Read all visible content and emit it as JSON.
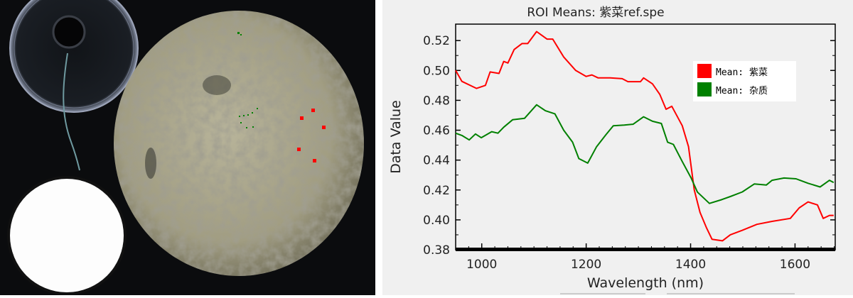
{
  "photo": {
    "roi_colors": {
      "purple_laver": "#ff0000",
      "impurity": "#008000"
    }
  },
  "chart_data": {
    "type": "line",
    "title": "ROI Means: 紫菜ref.spe",
    "xlabel": "Wavelength (nm)",
    "ylabel": "Data Value",
    "xlim": [
      950,
      1677
    ],
    "ylim": [
      0.38,
      0.531
    ],
    "xticks": [
      1000,
      1200,
      1400,
      1600
    ],
    "xtick_labels": [
      "1000",
      "1200",
      "1400",
      "1600"
    ],
    "yticks": [
      0.38,
      0.4,
      0.42,
      0.44,
      0.46,
      0.48,
      0.5,
      0.52
    ],
    "ytick_labels": [
      "0.38",
      "0.40",
      "0.42",
      "0.44",
      "0.46",
      "0.48",
      "0.50",
      "0.52"
    ],
    "grid": false,
    "legend_position": "top-right",
    "series": [
      {
        "name": "Mean: 紫菜",
        "color": "#ff0000",
        "x": [
          950,
          962,
          990,
          1007,
          1016,
          1033,
          1042,
          1050,
          1062,
          1077,
          1088,
          1105,
          1125,
          1136,
          1157,
          1180,
          1200,
          1211,
          1223,
          1246,
          1269,
          1280,
          1304,
          1310,
          1327,
          1341,
          1353,
          1364,
          1384,
          1396,
          1407,
          1418,
          1430,
          1441,
          1461,
          1476,
          1499,
          1527,
          1556,
          1591,
          1608,
          1625,
          1643,
          1654,
          1666,
          1674
        ],
        "y": [
          0.5,
          0.4927,
          0.488,
          0.49,
          0.499,
          0.498,
          0.506,
          0.505,
          0.514,
          0.518,
          0.518,
          0.526,
          0.521,
          0.521,
          0.509,
          0.5,
          0.496,
          0.497,
          0.495,
          0.495,
          0.4945,
          0.4925,
          0.4925,
          0.495,
          0.491,
          0.484,
          0.474,
          0.476,
          0.463,
          0.449,
          0.42,
          0.405,
          0.395,
          0.387,
          0.386,
          0.39,
          0.393,
          0.397,
          0.399,
          0.401,
          0.408,
          0.412,
          0.41,
          0.401,
          0.403,
          0.403
        ]
      },
      {
        "name": "Mean: 杂质",
        "color": "#008000",
        "x": [
          950,
          962,
          976,
          988,
          999,
          1019,
          1031,
          1042,
          1059,
          1082,
          1105,
          1122,
          1140,
          1157,
          1174,
          1186,
          1203,
          1220,
          1238,
          1252,
          1273,
          1290,
          1310,
          1327,
          1344,
          1356,
          1367,
          1384,
          1401,
          1413,
          1436,
          1459,
          1476,
          1499,
          1522,
          1545,
          1556,
          1579,
          1602,
          1625,
          1648,
          1666,
          1674
        ],
        "y": [
          0.458,
          0.4565,
          0.4535,
          0.4575,
          0.455,
          0.459,
          0.458,
          0.462,
          0.467,
          0.468,
          0.477,
          0.473,
          0.471,
          0.46,
          0.452,
          0.441,
          0.438,
          0.449,
          0.457,
          0.463,
          0.4635,
          0.464,
          0.469,
          0.466,
          0.4645,
          0.452,
          0.4505,
          0.439,
          0.428,
          0.4186,
          0.411,
          0.4135,
          0.4156,
          0.4187,
          0.424,
          0.4233,
          0.4265,
          0.428,
          0.4275,
          0.4245,
          0.422,
          0.4265,
          0.425
        ]
      }
    ]
  }
}
